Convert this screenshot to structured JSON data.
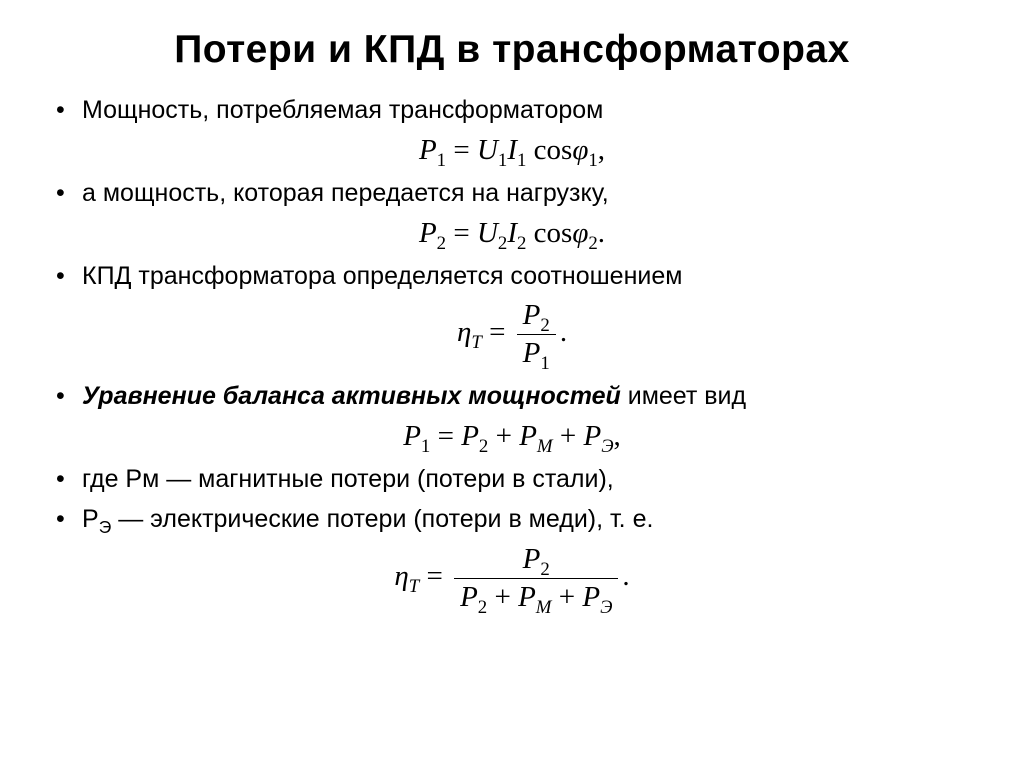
{
  "title": "Потери  и КПД в трансформаторах",
  "bullets": {
    "b1": "Мощность, потребляемая трансформатором",
    "b2": "а мощность, которая передается на нагрузку,",
    "b3": "КПД трансформатора определяется соотношением",
    "b4_bold": "Уравнение баланса активных мощностей",
    "b4_rest": " имеет вид",
    "b5": "где Рм — магнитные потери (потери в стали),",
    "b6_pre": "Р",
    "b6_sub": "Э",
    "b6_rest": " — электрические потери (потери в меди), т. е."
  },
  "colors": {
    "text": "#000000",
    "background": "#ffffff"
  },
  "fonts": {
    "title_size": 39,
    "body_size": 25,
    "eq_size": 29,
    "eq_family": "Times New Roman"
  }
}
